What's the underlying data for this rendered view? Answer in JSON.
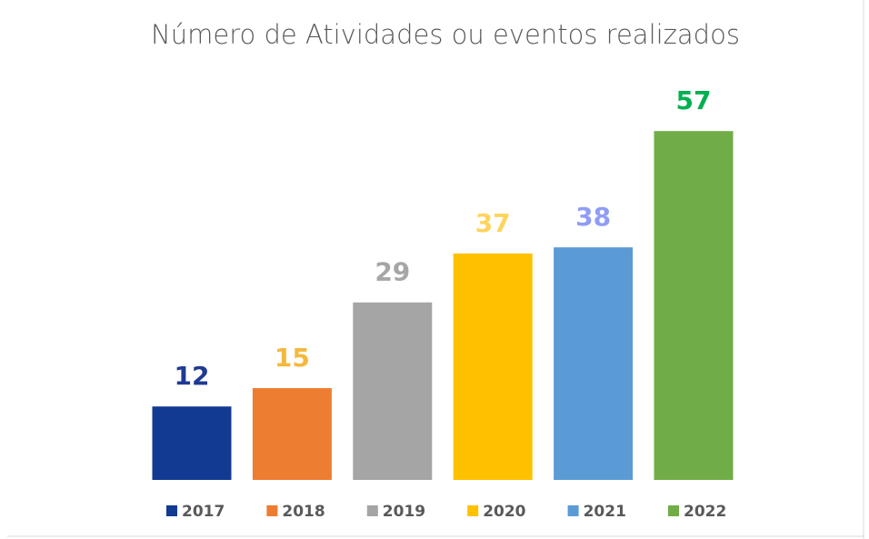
{
  "chart_data": {
    "type": "bar",
    "title": "Número de Atividades ou eventos realizados",
    "ylim": [
      0,
      60
    ],
    "series": [
      {
        "name": "2017",
        "color": "#133a92",
        "label_color": "#1f3a93",
        "values": [
          12
        ]
      },
      {
        "name": "2018",
        "color": "#ed7d31",
        "label_color": "#f5b83d",
        "values": [
          15
        ]
      },
      {
        "name": "2019",
        "color": "#a5a5a5",
        "label_color": "#a6a6a6",
        "values": [
          29
        ]
      },
      {
        "name": "2020",
        "color": "#ffc000",
        "label_color": "#ffd45e",
        "values": [
          37
        ]
      },
      {
        "name": "2021",
        "color": "#5b9bd5",
        "label_color": "#8f9df5",
        "values": [
          38
        ]
      },
      {
        "name": "2022",
        "color": "#70ad47",
        "label_color": "#00b050",
        "values": [
          57
        ]
      }
    ]
  }
}
